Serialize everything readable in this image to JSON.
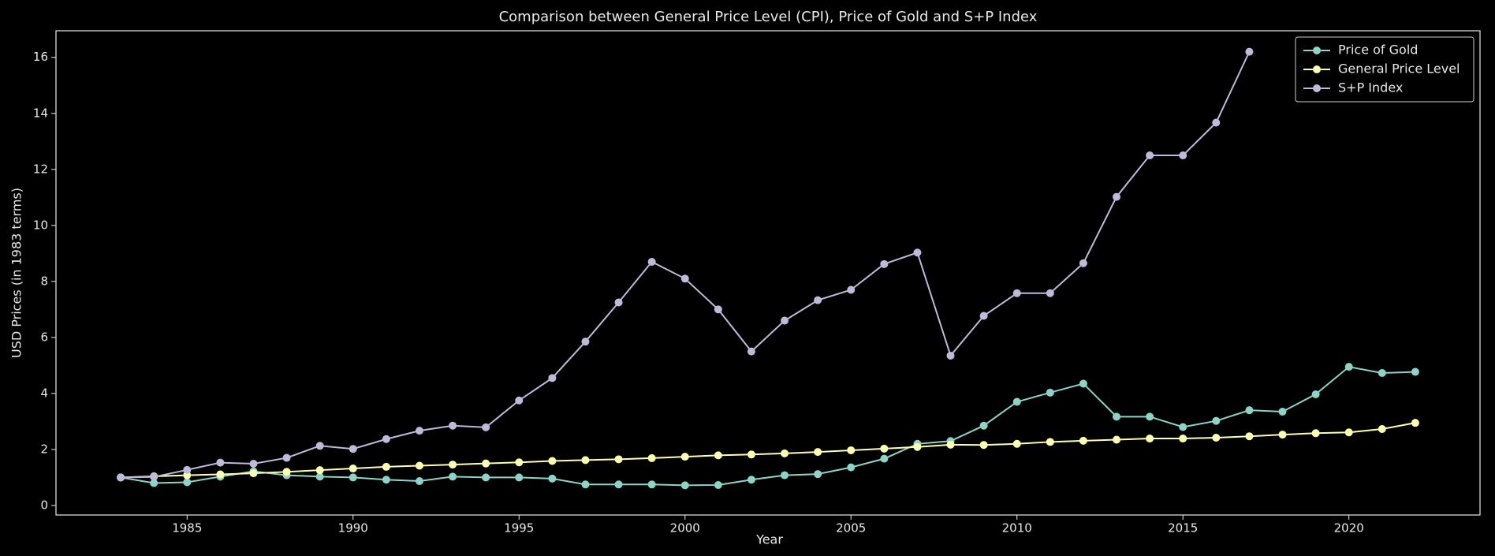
{
  "chart_data": {
    "type": "line",
    "title": "Comparison between General Price Level (CPI), Price of Gold and S+P Index",
    "xlabel": "Year",
    "ylabel": "USD Prices (in 1983 terms)",
    "x": [
      1983,
      1984,
      1985,
      1986,
      1987,
      1988,
      1989,
      1990,
      1991,
      1992,
      1993,
      1994,
      1995,
      1996,
      1997,
      1998,
      1999,
      2000,
      2001,
      2002,
      2003,
      2004,
      2005,
      2006,
      2007,
      2008,
      2009,
      2010,
      2011,
      2012,
      2013,
      2014,
      2015,
      2016,
      2017,
      2018,
      2019,
      2020,
      2021,
      2022
    ],
    "series": [
      {
        "name": "Price of Gold",
        "color": "#8dd3c7",
        "values": [
          1.0,
          0.8,
          0.83,
          1.03,
          1.22,
          1.08,
          1.03,
          1.0,
          0.92,
          0.87,
          1.03,
          1.0,
          1.0,
          0.96,
          0.75,
          0.75,
          0.75,
          0.72,
          0.73,
          0.92,
          1.08,
          1.12,
          1.36,
          1.67,
          2.2,
          2.3,
          2.85,
          3.7,
          4.03,
          4.35,
          3.17,
          3.17,
          2.8,
          3.02,
          3.4,
          3.35,
          3.97,
          4.95,
          4.73,
          4.77
        ]
      },
      {
        "name": "General Price Level",
        "color": "#ffffb3",
        "values": [
          1.0,
          1.04,
          1.08,
          1.11,
          1.15,
          1.2,
          1.26,
          1.32,
          1.38,
          1.42,
          1.46,
          1.5,
          1.54,
          1.59,
          1.62,
          1.65,
          1.69,
          1.74,
          1.79,
          1.82,
          1.86,
          1.91,
          1.97,
          2.03,
          2.09,
          2.17,
          2.16,
          2.2,
          2.27,
          2.31,
          2.35,
          2.39,
          2.39,
          2.42,
          2.47,
          2.53,
          2.58,
          2.61,
          2.73,
          2.95
        ]
      },
      {
        "name": "S+P Index",
        "color": "#bebada",
        "values": [
          1.0,
          1.02,
          1.27,
          1.53,
          1.49,
          1.7,
          2.13,
          2.02,
          2.37,
          2.67,
          2.85,
          2.79,
          3.75,
          4.55,
          5.85,
          7.25,
          8.7,
          8.1,
          7.0,
          5.5,
          6.6,
          7.33,
          7.7,
          8.62,
          9.03,
          5.35,
          6.77,
          7.58,
          7.58,
          8.65,
          11.02,
          12.5,
          12.5,
          13.67,
          16.2,
          null,
          null,
          null,
          null,
          null
        ]
      }
    ],
    "xlim": [
      1981.05,
      2023.95
    ],
    "xticks": [
      1985,
      1990,
      1995,
      2000,
      2005,
      2010,
      2015,
      2020
    ],
    "ylim": [
      -0.34,
      16.95
    ],
    "yticks": [
      0,
      2,
      4,
      6,
      8,
      10,
      12,
      14,
      16
    ],
    "legend": "upper right",
    "grid": false
  }
}
